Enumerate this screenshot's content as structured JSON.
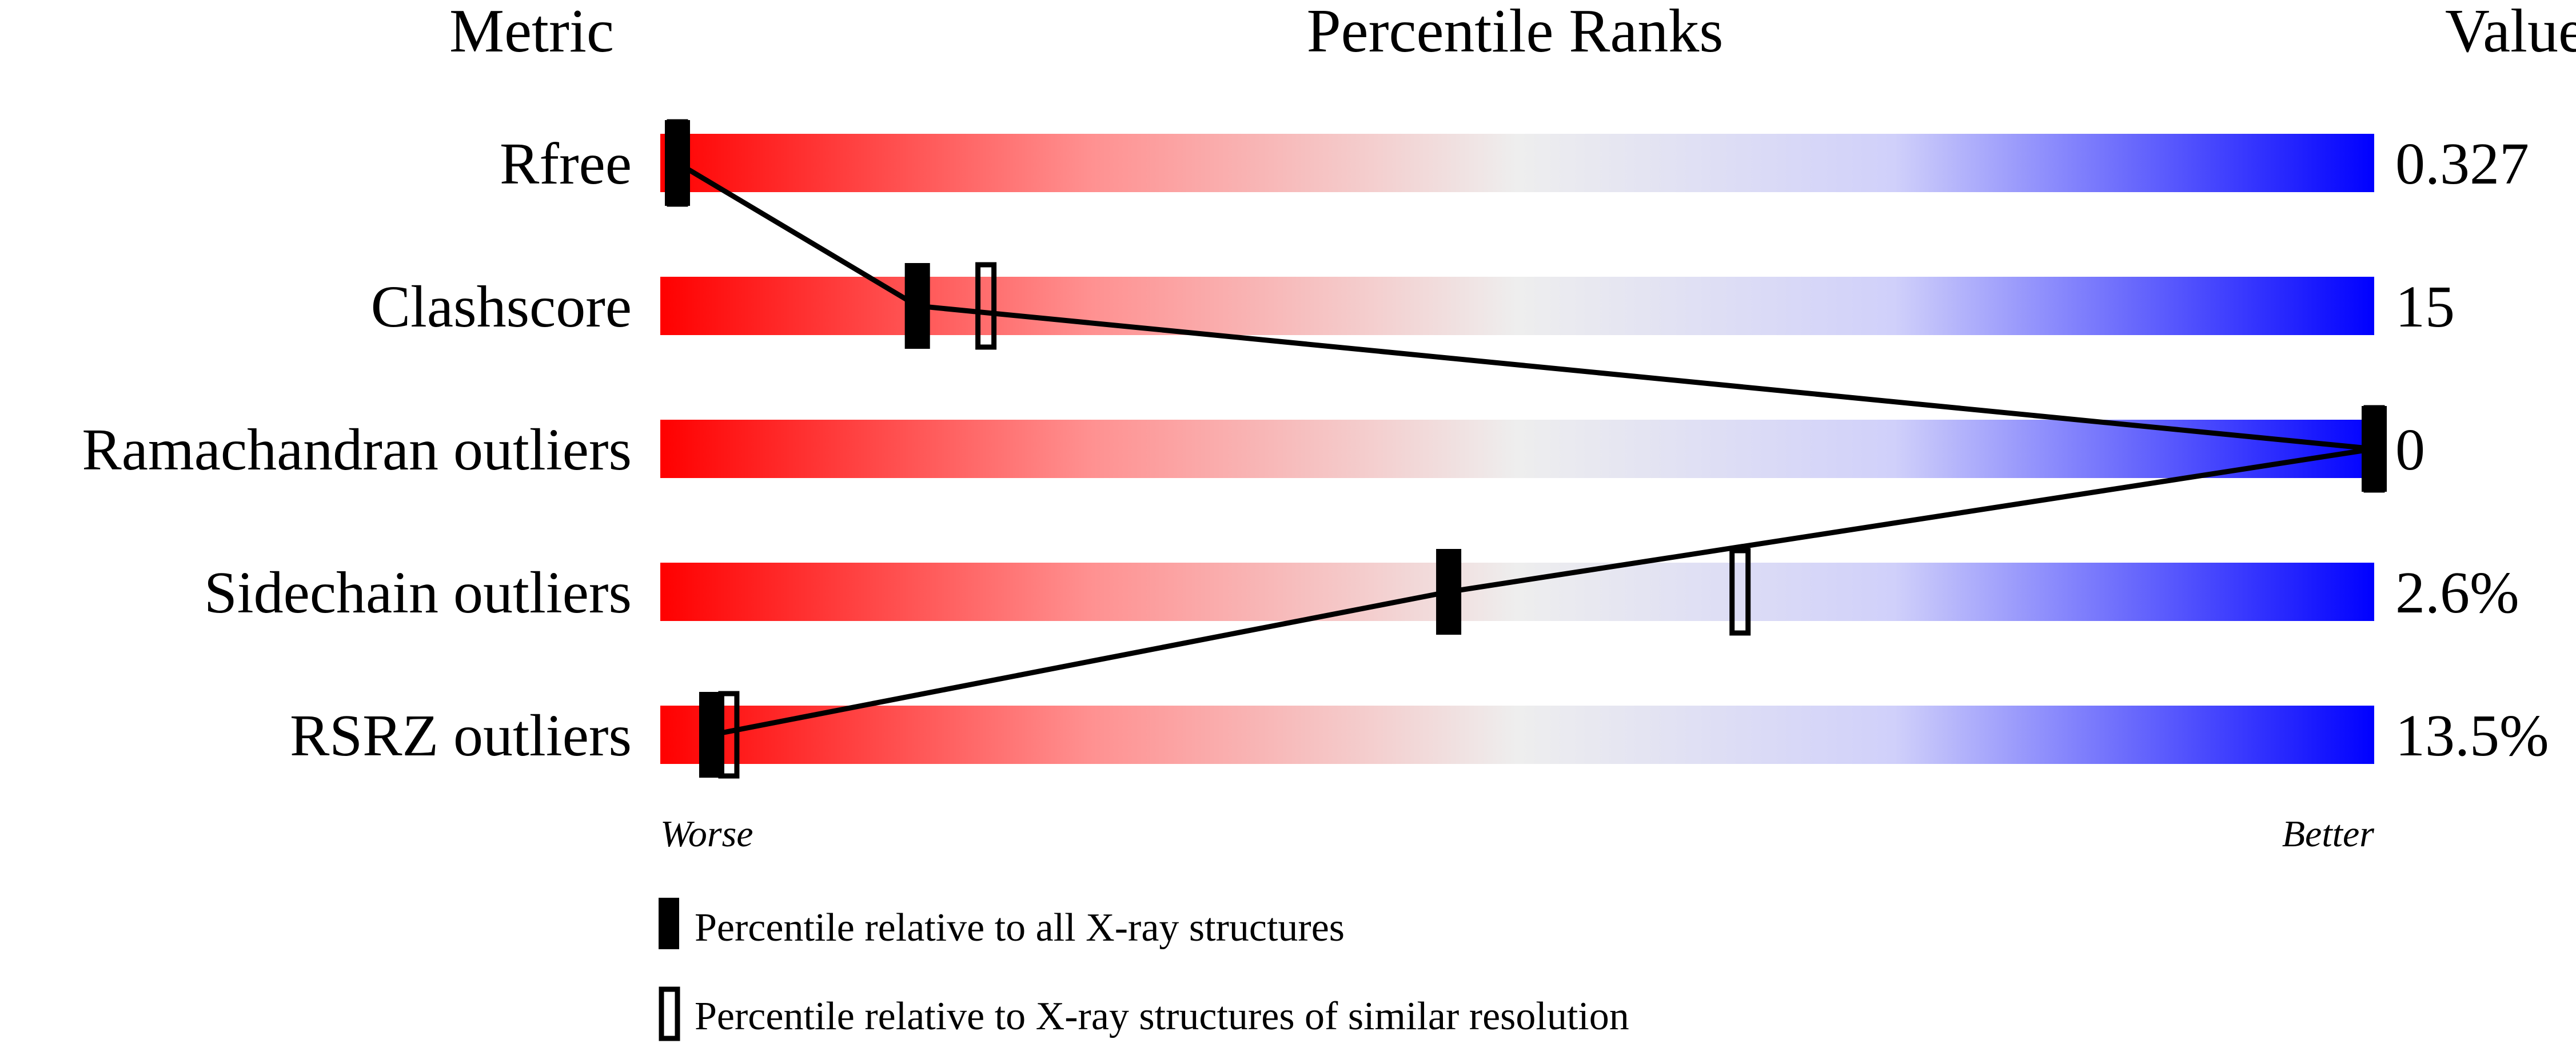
{
  "chart_data": {
    "type": "percentile-bar",
    "headers": {
      "metric": "Metric",
      "ranks": "Percentile Ranks",
      "value": "Value"
    },
    "xlim": [
      0,
      100
    ],
    "axis_labels": {
      "left": "Worse",
      "right": "Better"
    },
    "gradient_colors": [
      "#ff0000",
      "#eeeeee",
      "#0000ff"
    ],
    "metrics": [
      {
        "name": "Rfree",
        "value": "0.327",
        "percentile_all": 1,
        "percentile_similar": 1
      },
      {
        "name": "Clashscore",
        "value": "15",
        "percentile_all": 15,
        "percentile_similar": 19
      },
      {
        "name": "Ramachandran outliers",
        "value": "0",
        "percentile_all": 100,
        "percentile_similar": 100
      },
      {
        "name": "Sidechain outliers",
        "value": "2.6%",
        "percentile_all": 46,
        "percentile_similar": 63
      },
      {
        "name": "RSRZ outliers",
        "value": "13.5%",
        "percentile_all": 3,
        "percentile_similar": 4
      }
    ],
    "legend": [
      {
        "marker": "filled",
        "label": "Percentile relative to all X-ray structures"
      },
      {
        "marker": "open",
        "label": "Percentile relative to X-ray structures of similar resolution"
      }
    ]
  }
}
